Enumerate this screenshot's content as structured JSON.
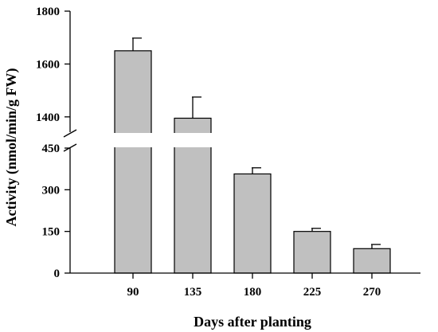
{
  "chart_data": {
    "type": "bar",
    "title": "",
    "xlabel": "Days after planting",
    "ylabel": "Activity (nmol/min/g FW)",
    "categories": [
      "90",
      "135",
      "180",
      "225",
      "270"
    ],
    "values": [
      1650,
      1395,
      357,
      150,
      88
    ],
    "errors": [
      48,
      80,
      22,
      11,
      15
    ],
    "y_axis_break": true,
    "y_lower_range": [
      0,
      450
    ],
    "y_upper_range": [
      1300,
      1800
    ],
    "y_lower_ticks": [
      "0",
      "150",
      "300",
      "450"
    ],
    "y_upper_ticks": [
      "1400",
      "1600",
      "1800"
    ],
    "bar_color": "#c0c0c0",
    "grid": false
  }
}
